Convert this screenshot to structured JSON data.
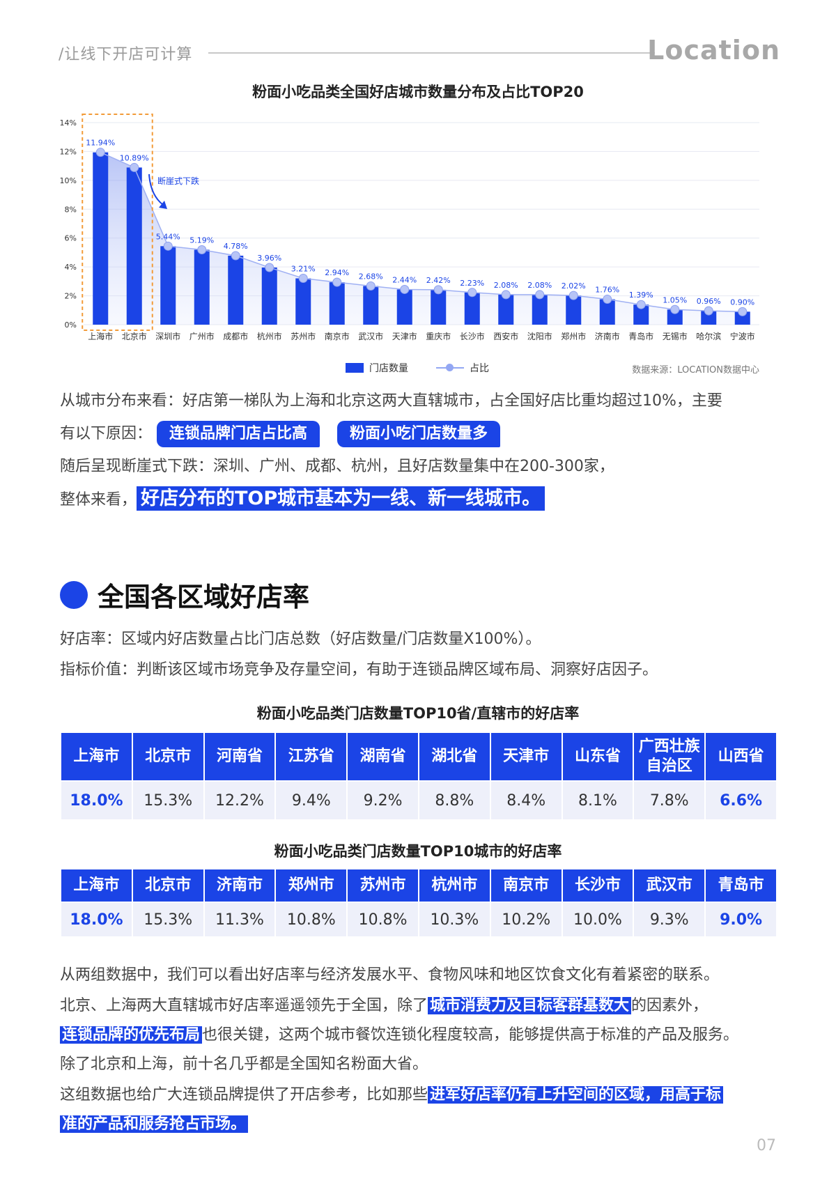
{
  "header": {
    "tagline": "/让线下开店可计算",
    "logo": "Location"
  },
  "chart1": {
    "title": "粉面小吃品类全国好店城市数量分布及占比TOP20"
  },
  "chart_data": {
    "type": "bar",
    "title": "粉面小吃品类全国好店城市数量分布及占比TOP20",
    "categories": [
      "上海市",
      "北京市",
      "深圳市",
      "广州市",
      "成都市",
      "杭州市",
      "苏州市",
      "南京市",
      "武汉市",
      "天津市",
      "重庆市",
      "长沙市",
      "西安市",
      "沈阳市",
      "郑州市",
      "济南市",
      "青岛市",
      "无锡市",
      "哈尔滨",
      "宁波市"
    ],
    "series": [
      {
        "name": "门店数量",
        "values": [
          11.94,
          10.89,
          5.44,
          5.19,
          4.78,
          3.96,
          3.21,
          2.94,
          2.68,
          2.44,
          2.42,
          2.23,
          2.08,
          2.08,
          2.02,
          1.76,
          1.39,
          1.05,
          0.96,
          0.9
        ]
      },
      {
        "name": "占比",
        "values": [
          11.94,
          10.89,
          5.44,
          5.19,
          4.78,
          3.96,
          3.21,
          2.94,
          2.68,
          2.44,
          2.42,
          2.23,
          2.08,
          2.08,
          2.02,
          1.76,
          1.39,
          1.05,
          0.96,
          0.9
        ],
        "labels": [
          "11.94%",
          "10.89%",
          "5.44%",
          "5.19%",
          "4.78%",
          "3.96%",
          "3.21%",
          "2.94%",
          "2.68%",
          "2.44%",
          "2.42%",
          "2.23%",
          "2.08%",
          "2.08%",
          "2.02%",
          "1.76%",
          "1.39%",
          "1.05%",
          "0.96%",
          "0.90%"
        ]
      }
    ],
    "yticks": [
      "0%",
      "2%",
      "4%",
      "6%",
      "8%",
      "10%",
      "12%",
      "14%"
    ],
    "ylim": [
      0,
      14
    ],
    "annotation": "断崖式下跌",
    "grid": true,
    "legend": "bottom-center"
  },
  "chart_source": "数据来源：LOCATION数据中心",
  "para1": {
    "line1": "从城市分布来看：好店第一梯队为上海和北京这两大直辖城市，占全国好店比重均超过10%，主要",
    "line2_prefix": "有以下原因：",
    "pill1": "连锁品牌门店占比高",
    "pill2": "粉面小吃门店数量多",
    "line3": "随后呈现断崖式下跌：深圳、广州、成都、杭州，且好店数量集中在200-300家，",
    "line4_prefix": "整体来看，",
    "line4_highlight": "好店分布的TOP城市基本为一线、新一线城市。"
  },
  "section": {
    "title": "全国各区域好店率"
  },
  "definition": {
    "line1": "好店率：区域内好店数量占比门店总数（好店数量/门店数量X100%）。",
    "line2": "指标价值：判断该区域市场竞争及存量空间，有助于连锁品牌区域布局、洞察好店因子。"
  },
  "table1": {
    "title": "粉面小吃品类门店数量TOP10省/直辖市的好店率",
    "headers": [
      "上海市",
      "北京市",
      "河南省",
      "江苏省",
      "湖南省",
      "湖北省",
      "天津市",
      "山东省",
      "广西壮族自治区",
      "山西省"
    ],
    "values": [
      "18.0%",
      "15.3%",
      "12.2%",
      "9.4%",
      "9.2%",
      "8.8%",
      "8.4%",
      "8.1%",
      "7.8%",
      "6.6%"
    ]
  },
  "table2": {
    "title": "粉面小吃品类门店数量TOP10城市的好店率",
    "headers": [
      "上海市",
      "北京市",
      "济南市",
      "郑州市",
      "苏州市",
      "杭州市",
      "南京市",
      "长沙市",
      "武汉市",
      "青岛市"
    ],
    "values": [
      "18.0%",
      "15.3%",
      "11.3%",
      "10.8%",
      "10.8%",
      "10.3%",
      "10.2%",
      "10.0%",
      "9.3%",
      "9.0%"
    ]
  },
  "para2": {
    "line1": "从两组数据中，我们可以看出好店率与经济发展水平、食物风味和地区饮食文化有着紧密的联系。",
    "line2_a": "北京、上海两大直辖城市好店率遥遥领先于全国，除了",
    "line2_hl": "城市消费力及目标客群基数大",
    "line2_b": "的因素外，",
    "line3_hl": "连锁品牌的优先布局",
    "line3_b": "也很关键，这两个城市餐饮连锁化程度较高，能够提供高于标准的产品及服务。",
    "line4": "除了北京和上海，前十名几乎都是全国知名粉面大省。",
    "line5_a": "这组数据也给广大连锁品牌提供了开店参考，比如那些",
    "line5_hl": "进军好店率仍有上升空间的区域，用高于标",
    "line6_hl": "准的产品和服务抢占市场。"
  },
  "page_number": "07"
}
